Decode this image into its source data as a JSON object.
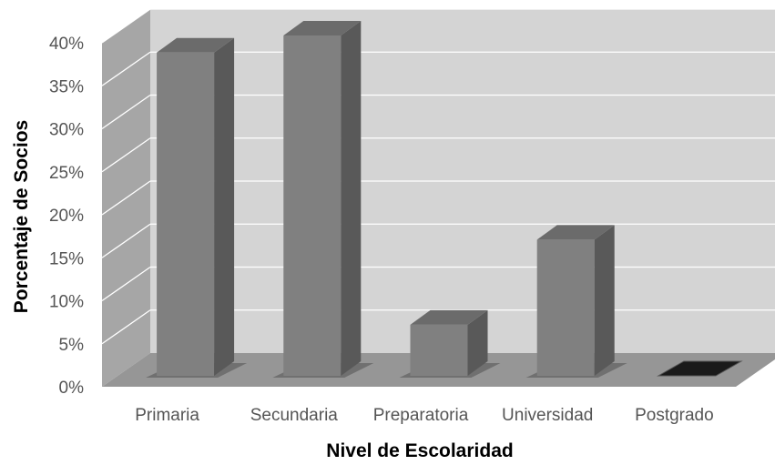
{
  "chart_data": {
    "type": "bar",
    "title": "",
    "xlabel": "Nivel de Escolaridad",
    "ylabel": "Porcentaje de Socios",
    "categories": [
      "Primaria",
      "Secundaria",
      "Preparatoria",
      "Universidad",
      "Postgrado"
    ],
    "values": [
      38,
      40,
      6,
      16,
      0
    ],
    "ylim": [
      0,
      40
    ],
    "yticks": [
      "0%",
      "5%",
      "10%",
      "15%",
      "20%",
      "25%",
      "30%",
      "35%",
      "40%"
    ],
    "grid": true,
    "legend": "none",
    "style": "3d-clustered-column",
    "colors": {
      "wall": "#d4d4d4",
      "side_wall": "#a6a6a6",
      "floor": "#969696",
      "bar_front": "#808080",
      "bar_side": "#595959",
      "bar_top": "#6b6b6b",
      "gridline": "#ffffff"
    }
  }
}
